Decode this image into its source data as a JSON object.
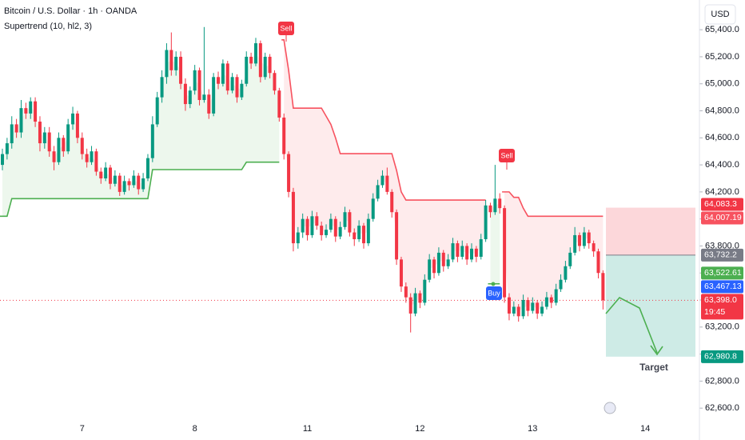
{
  "header": {
    "title": "Bitcoin / U.S. Dollar · 1h · OANDA",
    "indicator": "Supertrend (10, hl2, 3)",
    "currency": "USD"
  },
  "chart_data": {
    "type": "candlestick",
    "up_color": "#089981",
    "down_color": "#f23645",
    "grid": false,
    "ylim": [
      62530,
      65620
    ],
    "yticks": [
      {
        "value": 62600,
        "label": "62,600.0"
      },
      {
        "value": 62800,
        "label": "62,800.0"
      },
      {
        "value": 63000,
        "label": "63,000.0"
      },
      {
        "value": 63200,
        "label": "63,200.0"
      },
      {
        "value": 63400,
        "label": "63,400.0"
      },
      {
        "value": 63600,
        "label": "63,600.0"
      },
      {
        "value": 63800,
        "label": "63,800.0"
      },
      {
        "value": 64000,
        "label": "64,000.0"
      },
      {
        "value": 64200,
        "label": "64,200.0"
      },
      {
        "value": 64400,
        "label": "64,400.0"
      },
      {
        "value": 64600,
        "label": "64,600.0"
      },
      {
        "value": 64800,
        "label": "64,800.0"
      },
      {
        "value": 65000,
        "label": "65,000.0"
      },
      {
        "value": 65200,
        "label": "65,200.0"
      },
      {
        "value": 65400,
        "label": "65,400.0"
      }
    ],
    "categories": [
      null,
      null,
      null,
      null,
      null,
      null,
      null,
      null,
      null,
      null,
      null,
      null,
      null,
      null,
      null,
      null,
      null,
      "7",
      null,
      null,
      null,
      null,
      null,
      null,
      null,
      null,
      null,
      null,
      null,
      null,
      null,
      null,
      null,
      null,
      null,
      null,
      null,
      null,
      null,
      null,
      null,
      "8",
      null,
      null,
      null,
      null,
      null,
      null,
      null,
      null,
      null,
      null,
      null,
      null,
      null,
      null,
      null,
      null,
      null,
      null,
      null,
      null,
      null,
      null,
      null,
      "11",
      null,
      null,
      null,
      null,
      null,
      null,
      null,
      null,
      null,
      null,
      null,
      null,
      null,
      null,
      null,
      null,
      null,
      null,
      null,
      null,
      null,
      null,
      null,
      "12",
      null,
      null,
      null,
      null,
      null,
      null,
      null,
      null,
      null,
      null,
      null,
      null,
      null,
      null,
      null,
      null,
      null,
      null,
      null,
      null,
      null,
      null,
      null,
      "13",
      null,
      null,
      null,
      null,
      null,
      null,
      null,
      null,
      null,
      null,
      null,
      null,
      null,
      null,
      null,
      null,
      null,
      null,
      null,
      null,
      null,
      null,
      null,
      "14"
    ],
    "ohlc": [
      [
        64400,
        64520,
        64360,
        64480
      ],
      [
        64480,
        64600,
        64440,
        64560
      ],
      [
        64560,
        64760,
        64520,
        64700
      ],
      [
        64700,
        64740,
        64600,
        64640
      ],
      [
        64640,
        64880,
        64600,
        64820
      ],
      [
        64820,
        64860,
        64740,
        64780
      ],
      [
        64780,
        64900,
        64740,
        64870
      ],
      [
        64870,
        64900,
        64680,
        64720
      ],
      [
        64720,
        64760,
        64500,
        64560
      ],
      [
        64560,
        64680,
        64520,
        64640
      ],
      [
        64640,
        64680,
        64460,
        64500
      ],
      [
        64500,
        64540,
        64360,
        64420
      ],
      [
        64420,
        64640,
        64400,
        64600
      ],
      [
        64600,
        64620,
        64460,
        64500
      ],
      [
        64500,
        64740,
        64480,
        64700
      ],
      [
        64700,
        64830,
        64660,
        64780
      ],
      [
        64780,
        64800,
        64560,
        64600
      ],
      [
        64600,
        64640,
        64440,
        64480
      ],
      [
        64480,
        64520,
        64380,
        64420
      ],
      [
        64420,
        64540,
        64400,
        64500
      ],
      [
        64500,
        64520,
        64320,
        64350
      ],
      [
        64350,
        64380,
        64260,
        64300
      ],
      [
        64300,
        64420,
        64280,
        64380
      ],
      [
        64380,
        64400,
        64220,
        64260
      ],
      [
        64260,
        64360,
        64240,
        64320
      ],
      [
        64320,
        64340,
        64170,
        64200
      ],
      [
        64200,
        64320,
        64180,
        64280
      ],
      [
        64280,
        64300,
        64210,
        64250
      ],
      [
        64250,
        64360,
        64230,
        64320
      ],
      [
        64320,
        64340,
        64180,
        64220
      ],
      [
        64220,
        64340,
        64200,
        64300
      ],
      [
        64300,
        64480,
        64280,
        64450
      ],
      [
        64450,
        64760,
        64420,
        64700
      ],
      [
        64700,
        64940,
        64680,
        64900
      ],
      [
        64900,
        65100,
        64860,
        65050
      ],
      [
        65050,
        65300,
        65000,
        65250
      ],
      [
        65250,
        65380,
        65060,
        65100
      ],
      [
        65100,
        65240,
        65060,
        65200
      ],
      [
        65200,
        65240,
        64960,
        65000
      ],
      [
        65000,
        65040,
        64800,
        64850
      ],
      [
        64850,
        64980,
        64820,
        64950
      ],
      [
        64950,
        65140,
        64920,
        65100
      ],
      [
        65100,
        65120,
        64840,
        64880
      ],
      [
        64880,
        65420,
        64860,
        64920
      ],
      [
        64920,
        64960,
        64740,
        64780
      ],
      [
        64780,
        65080,
        64760,
        65050
      ],
      [
        65050,
        65090,
        64960,
        65000
      ],
      [
        65000,
        65180,
        64980,
        65150
      ],
      [
        65150,
        65170,
        64920,
        64950
      ],
      [
        64950,
        65080,
        64930,
        65050
      ],
      [
        65050,
        65070,
        64860,
        64900
      ],
      [
        64900,
        65030,
        64880,
        65000
      ],
      [
        65000,
        65240,
        64980,
        65200
      ],
      [
        65200,
        65230,
        65110,
        65150
      ],
      [
        65150,
        65340,
        65130,
        65300
      ],
      [
        65300,
        65320,
        65010,
        65050
      ],
      [
        65050,
        65230,
        65030,
        65200
      ],
      [
        65200,
        65220,
        65040,
        65080
      ],
      [
        65080,
        65100,
        64920,
        64950
      ],
      [
        64950,
        64970,
        64720,
        64750
      ],
      [
        64750,
        64780,
        64440,
        64480
      ],
      [
        64480,
        64500,
        64160,
        64200
      ],
      [
        64200,
        64230,
        63760,
        63820
      ],
      [
        63820,
        63940,
        63780,
        63900
      ],
      [
        63900,
        64040,
        63860,
        64000
      ],
      [
        64000,
        64020,
        63840,
        63880
      ],
      [
        63880,
        64060,
        63860,
        64020
      ],
      [
        64020,
        64050,
        63920,
        63950
      ],
      [
        63950,
        63980,
        63840,
        63880
      ],
      [
        63880,
        63960,
        63860,
        63920
      ],
      [
        63920,
        64040,
        63900,
        64000
      ],
      [
        64000,
        64020,
        63830,
        63870
      ],
      [
        63870,
        63980,
        63850,
        63940
      ],
      [
        63940,
        64090,
        63920,
        64050
      ],
      [
        64050,
        64070,
        63870,
        63900
      ],
      [
        63900,
        63930,
        63800,
        63850
      ],
      [
        63850,
        63990,
        63830,
        63950
      ],
      [
        63950,
        63970,
        63780,
        63820
      ],
      [
        63820,
        64040,
        63800,
        64000
      ],
      [
        64000,
        64190,
        63980,
        64150
      ],
      [
        64150,
        64290,
        64130,
        64250
      ],
      [
        64250,
        64360,
        64230,
        64320
      ],
      [
        64320,
        64380,
        64180,
        64200
      ],
      [
        64200,
        64220,
        64010,
        64050
      ],
      [
        64050,
        64070,
        63660,
        63700
      ],
      [
        63700,
        63720,
        63460,
        63500
      ],
      [
        63500,
        63530,
        63380,
        63420
      ],
      [
        63420,
        63450,
        63160,
        63300
      ],
      [
        63300,
        63490,
        63280,
        63450
      ],
      [
        63450,
        63470,
        63340,
        63380
      ],
      [
        63380,
        63590,
        63360,
        63550
      ],
      [
        63550,
        63740,
        63530,
        63700
      ],
      [
        63700,
        63720,
        63560,
        63600
      ],
      [
        63600,
        63790,
        63580,
        63750
      ],
      [
        63750,
        63770,
        63610,
        63650
      ],
      [
        63650,
        63740,
        63630,
        63700
      ],
      [
        63700,
        63860,
        63680,
        63820
      ],
      [
        63820,
        63840,
        63680,
        63720
      ],
      [
        63720,
        63840,
        63700,
        63800
      ],
      [
        63800,
        63820,
        63660,
        63700
      ],
      [
        63700,
        63820,
        63680,
        63780
      ],
      [
        63780,
        63800,
        63680,
        63720
      ],
      [
        63720,
        63890,
        63700,
        63850
      ],
      [
        63850,
        64140,
        63830,
        64100
      ],
      [
        64100,
        64120,
        64010,
        64050
      ],
      [
        64050,
        64400,
        64030,
        64150
      ],
      [
        64150,
        64190,
        64040,
        64080
      ],
      [
        64080,
        64100,
        63380,
        63420
      ],
      [
        63420,
        63450,
        63250,
        63300
      ],
      [
        63300,
        63390,
        63280,
        63350
      ],
      [
        63350,
        63370,
        63240,
        63280
      ],
      [
        63280,
        63440,
        63260,
        63400
      ],
      [
        63400,
        63420,
        63280,
        63320
      ],
      [
        63320,
        63420,
        63300,
        63380
      ],
      [
        63380,
        63400,
        63260,
        63300
      ],
      [
        63300,
        63390,
        63280,
        63350
      ],
      [
        63350,
        63460,
        63330,
        63420
      ],
      [
        63420,
        63440,
        63340,
        63380
      ],
      [
        63380,
        63520,
        63360,
        63480
      ],
      [
        63480,
        63590,
        63460,
        63550
      ],
      [
        63550,
        63690,
        63530,
        63650
      ],
      [
        63650,
        63790,
        63630,
        63750
      ],
      [
        63750,
        63940,
        63730,
        63880
      ],
      [
        63880,
        63900,
        63760,
        63800
      ],
      [
        63800,
        63940,
        63780,
        63900
      ],
      [
        63900,
        63920,
        63780,
        63820
      ],
      [
        63820,
        63840,
        63720,
        63760
      ],
      [
        63760,
        63780,
        63560,
        63600
      ],
      [
        63600,
        63620,
        63330,
        63398
      ],
      null,
      null,
      null,
      null,
      null,
      null,
      null,
      null,
      null
    ],
    "supertrend": {
      "up_color": "#4caf50",
      "down_color": "#f7525f",
      "up": [
        64020,
        64020,
        64150,
        64150,
        64150,
        64150,
        64150,
        64150,
        64150,
        64150,
        64150,
        64150,
        64150,
        64150,
        64150,
        64150,
        64150,
        64150,
        64150,
        64150,
        64150,
        64150,
        64150,
        64150,
        64150,
        64150,
        64150,
        64150,
        64150,
        64150,
        64150,
        64150,
        64365,
        64365,
        64365,
        64365,
        64365,
        64365,
        64365,
        64365,
        64365,
        64365,
        64365,
        64365,
        64365,
        64365,
        64365,
        64365,
        64365,
        64365,
        64365,
        64365,
        64420,
        64420,
        64420,
        64420,
        64420,
        64420,
        64420,
        64420,
        null,
        null,
        null,
        null,
        null,
        null,
        null,
        null,
        null,
        null,
        null,
        null,
        null,
        null,
        null,
        null,
        null,
        null,
        null,
        null,
        null,
        null,
        null,
        null,
        null,
        null,
        null,
        null,
        null,
        null,
        null,
        null,
        null,
        null,
        null,
        null,
        null,
        null,
        null,
        null,
        null,
        null,
        null,
        null,
        63520,
        63520,
        63520,
        null,
        null,
        null,
        null,
        null,
        null,
        null,
        null,
        null,
        null,
        null,
        null,
        null,
        null,
        null,
        null,
        null,
        null,
        null,
        null,
        null,
        null,
        null,
        null,
        null,
        null,
        null,
        null,
        null,
        null,
        null
      ],
      "down": [
        null,
        null,
        null,
        null,
        null,
        null,
        null,
        null,
        null,
        null,
        null,
        null,
        null,
        null,
        null,
        null,
        null,
        null,
        null,
        null,
        null,
        null,
        null,
        null,
        null,
        null,
        null,
        null,
        null,
        null,
        null,
        null,
        null,
        null,
        null,
        null,
        null,
        null,
        null,
        null,
        null,
        null,
        null,
        null,
        null,
        null,
        null,
        null,
        null,
        null,
        null,
        null,
        null,
        null,
        null,
        null,
        null,
        null,
        null,
        null,
        65325,
        65100,
        64820,
        64820,
        64820,
        64820,
        64820,
        64820,
        64820,
        64760,
        64700,
        64600,
        64483,
        64483,
        64483,
        64483,
        64483,
        64483,
        64483,
        64483,
        64483,
        64483,
        64483,
        64483,
        64360,
        64200,
        64140,
        64140,
        64140,
        64140,
        64140,
        64140,
        64140,
        64140,
        64140,
        64140,
        64140,
        64140,
        64140,
        64140,
        64140,
        64140,
        64140,
        64140,
        null,
        null,
        null,
        64200,
        64200,
        64160,
        64160,
        64080,
        64020,
        64020,
        64020,
        64020,
        64020,
        64020,
        64020,
        64020,
        64020,
        64020,
        64020,
        64020,
        64020,
        64020,
        64020,
        64020,
        64020,
        null,
        null,
        null,
        null,
        null,
        null,
        null,
        null,
        null
      ]
    },
    "price_labels": [
      {
        "value": 64083.3,
        "label": "64,083.3",
        "color": "#f23645"
      },
      {
        "value": 64007.19,
        "label": "64,007.19",
        "color": "#f7525f"
      },
      {
        "value": 63732.2,
        "label": "63,732.2",
        "color": "#787b86"
      },
      {
        "value": 63522.61,
        "label": "63,522.61",
        "color": "#4caf50"
      },
      {
        "value": 63467.13,
        "label": "63,467.13",
        "color": "#2962ff"
      },
      {
        "value": 63398,
        "label": "63,398.0",
        "time": "19:45",
        "color": "#f23645"
      },
      {
        "value": 62980.8,
        "label": "62,980.8",
        "color": "#089981"
      }
    ],
    "signals": [
      "Sell",
      "Sell",
      "Buy"
    ],
    "annotation": "Target"
  }
}
